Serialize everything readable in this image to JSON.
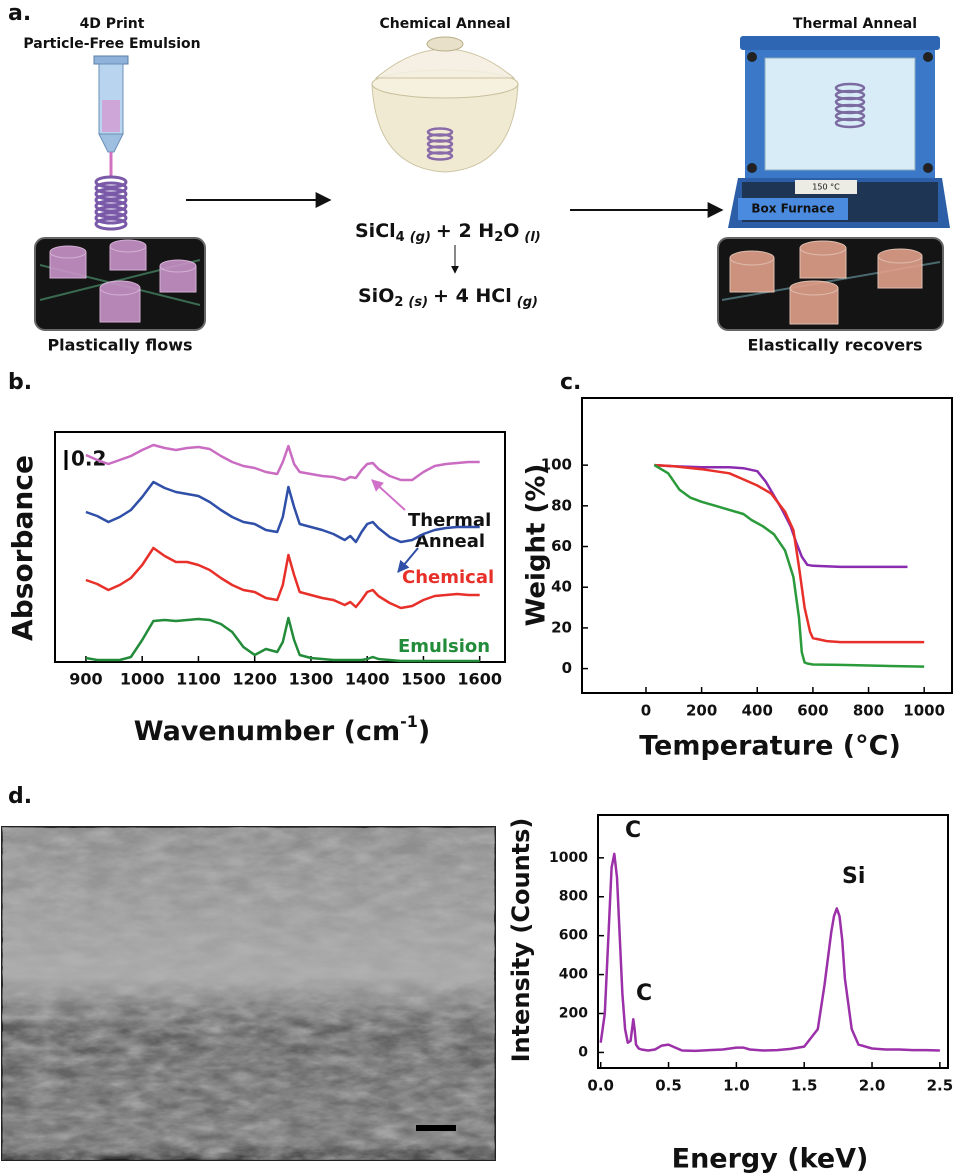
{
  "panel_a": {
    "label": "a.",
    "step_1_title": [
      "4D Print",
      "Particle-Free Emulsion"
    ],
    "step_2_title": "Chemical Anneal",
    "step_3_title": "Thermal Anneal",
    "reaction_1": [
      "SiCl",
      "4",
      "(g)",
      "+ 2 H",
      "2",
      "O",
      "(l)"
    ],
    "reaction_2": [
      "SiO",
      "2",
      "(s)",
      "+ 4 HCl",
      "(g)"
    ],
    "furnace_display": "150 °C",
    "furnace_label": "Box Furnace",
    "caption_left": "Plastically flows",
    "caption_right": "Elastically recovers"
  },
  "panel_d_label": "d.",
  "chart_data": [
    {
      "type": "line",
      "panel_label": "b.",
      "ylabel": "Absorbance",
      "xlabel": "Wavenumber (cm",
      "xlabel_sup": "-1",
      "xlabel_end": ")",
      "scale_bar": 0.2,
      "annotations": [
        "Thermal",
        "Anneal",
        "Chemical",
        "Emulsion"
      ],
      "x": [
        900,
        920,
        940,
        960,
        980,
        1000,
        1020,
        1040,
        1060,
        1080,
        1100,
        1120,
        1140,
        1160,
        1180,
        1200,
        1220,
        1240,
        1250,
        1260,
        1270,
        1280,
        1300,
        1320,
        1340,
        1360,
        1370,
        1380,
        1390,
        1400,
        1410,
        1420,
        1440,
        1460,
        1480,
        1500,
        1520,
        1540,
        1560,
        1580,
        1600
      ],
      "xlim": [
        845,
        1645
      ],
      "xticks": [
        900,
        1000,
        1100,
        1200,
        1300,
        1400,
        1500,
        1600
      ],
      "ylim": [
        0,
        2.3
      ],
      "series": [
        {
          "color": "#c96cc2",
          "values": [
            2.07,
            2.02,
            1.98,
            2.02,
            2.06,
            2.12,
            2.17,
            2.14,
            2.12,
            2.14,
            2.15,
            2.13,
            2.06,
            2.0,
            1.96,
            1.94,
            1.9,
            1.88,
            2.0,
            2.16,
            1.98,
            1.9,
            1.88,
            1.86,
            1.85,
            1.82,
            1.85,
            1.84,
            1.92,
            1.98,
            1.99,
            1.93,
            1.86,
            1.82,
            1.82,
            1.9,
            1.96,
            1.98,
            1.99,
            2.0,
            2.0
          ]
        },
        {
          "color": "#2f4fa8",
          "values": [
            1.5,
            1.46,
            1.4,
            1.45,
            1.52,
            1.65,
            1.8,
            1.74,
            1.7,
            1.68,
            1.66,
            1.6,
            1.52,
            1.45,
            1.4,
            1.38,
            1.32,
            1.3,
            1.45,
            1.75,
            1.55,
            1.38,
            1.35,
            1.32,
            1.28,
            1.22,
            1.26,
            1.2,
            1.3,
            1.38,
            1.4,
            1.34,
            1.25,
            1.2,
            1.22,
            1.28,
            1.32,
            1.34,
            1.35,
            1.35,
            1.35
          ]
        },
        {
          "color": "#e8302a",
          "values": [
            0.82,
            0.78,
            0.72,
            0.77,
            0.84,
            0.97,
            1.14,
            1.06,
            1.0,
            1.0,
            0.97,
            0.92,
            0.84,
            0.77,
            0.72,
            0.7,
            0.64,
            0.62,
            0.77,
            1.07,
            0.87,
            0.7,
            0.67,
            0.64,
            0.62,
            0.57,
            0.6,
            0.55,
            0.62,
            0.7,
            0.72,
            0.66,
            0.59,
            0.54,
            0.56,
            0.62,
            0.66,
            0.67,
            0.68,
            0.67,
            0.67
          ]
        },
        {
          "color": "#238c3a",
          "values": [
            0.04,
            0.02,
            0.02,
            0.02,
            0.05,
            0.22,
            0.41,
            0.42,
            0.41,
            0.42,
            0.43,
            0.42,
            0.38,
            0.3,
            0.15,
            0.07,
            0.13,
            0.1,
            0.2,
            0.44,
            0.22,
            0.07,
            0.04,
            0.03,
            0.02,
            0.02,
            0.02,
            0.02,
            0.02,
            0.03,
            0.05,
            0.03,
            0.02,
            0.01,
            0.01,
            0.01,
            0.01,
            0.01,
            0.01,
            0.01,
            0.01
          ]
        }
      ]
    },
    {
      "type": "line",
      "panel_label": "c.",
      "ylabel": "Weight (%)",
      "xlabel": "Temperature (°C)",
      "xlim": [
        -230,
        1100
      ],
      "xticks": [
        0,
        200,
        400,
        600,
        800,
        1000
      ],
      "ylim": [
        -12,
        133
      ],
      "yticks": [
        0,
        20,
        40,
        60,
        80,
        100
      ],
      "series": [
        {
          "color": "#8a2bb0",
          "x": [
            30,
            100,
            200,
            300,
            350,
            400,
            430,
            460,
            490,
            520,
            540,
            560,
            580,
            600,
            700,
            800,
            940
          ],
          "values": [
            100,
            99.5,
            99,
            99,
            98.5,
            97,
            92,
            85,
            78,
            70,
            62,
            55,
            51,
            50.5,
            50,
            50,
            50
          ]
        },
        {
          "color": "#e8302a",
          "x": [
            30,
            100,
            200,
            300,
            350,
            400,
            450,
            500,
            530,
            550,
            570,
            590,
            600,
            650,
            700,
            800,
            900,
            1000
          ],
          "values": [
            100,
            99.5,
            98,
            96,
            93,
            90,
            86,
            77,
            68,
            50,
            30,
            18,
            15,
            13.5,
            13,
            13,
            13,
            13
          ]
        },
        {
          "color": "#2a9a3a",
          "x": [
            30,
            80,
            120,
            160,
            200,
            250,
            300,
            350,
            380,
            420,
            460,
            500,
            530,
            550,
            560,
            570,
            580,
            600,
            700,
            800,
            900,
            1000
          ],
          "values": [
            100,
            96,
            88,
            84,
            82,
            80,
            78,
            76,
            73,
            70,
            66,
            58,
            45,
            25,
            8,
            3,
            2.5,
            2,
            1.8,
            1.5,
            1.2,
            1
          ]
        }
      ]
    },
    {
      "type": "line",
      "ylabel": "Intensity (Counts)",
      "xlabel": "Energy (keV)",
      "annotations": [
        "C",
        "C",
        "Si"
      ],
      "xlim": [
        -0.02,
        2.56
      ],
      "xticks": [
        {
          "value": 0,
          "label": "0.0"
        },
        0.5,
        {
          "value": 1,
          "label": "1.0"
        },
        1.5,
        {
          "value": 2,
          "label": "2.0"
        },
        2.5
      ],
      "ylim": [
        -80,
        1220
      ],
      "yticks": [
        0,
        200,
        400,
        600,
        800,
        1000
      ],
      "series": [
        {
          "color": "#9b30a8",
          "x": [
            0,
            0.03,
            0.06,
            0.08,
            0.1,
            0.12,
            0.14,
            0.16,
            0.18,
            0.2,
            0.22,
            0.24,
            0.25,
            0.26,
            0.28,
            0.3,
            0.35,
            0.4,
            0.45,
            0.5,
            0.55,
            0.6,
            0.7,
            0.8,
            0.9,
            1.0,
            1.05,
            1.1,
            1.2,
            1.3,
            1.4,
            1.5,
            1.6,
            1.65,
            1.7,
            1.72,
            1.74,
            1.76,
            1.78,
            1.8,
            1.85,
            1.9,
            2.0,
            2.1,
            2.2,
            2.3,
            2.4,
            2.5
          ],
          "values": [
            50,
            200,
            650,
            950,
            1020,
            900,
            600,
            300,
            120,
            50,
            60,
            170,
            120,
            40,
            20,
            15,
            10,
            15,
            35,
            40,
            25,
            10,
            8,
            12,
            15,
            25,
            25,
            15,
            10,
            12,
            18,
            30,
            120,
            350,
            620,
            700,
            740,
            700,
            580,
            380,
            120,
            40,
            20,
            15,
            15,
            12,
            12,
            10
          ]
        }
      ]
    }
  ]
}
